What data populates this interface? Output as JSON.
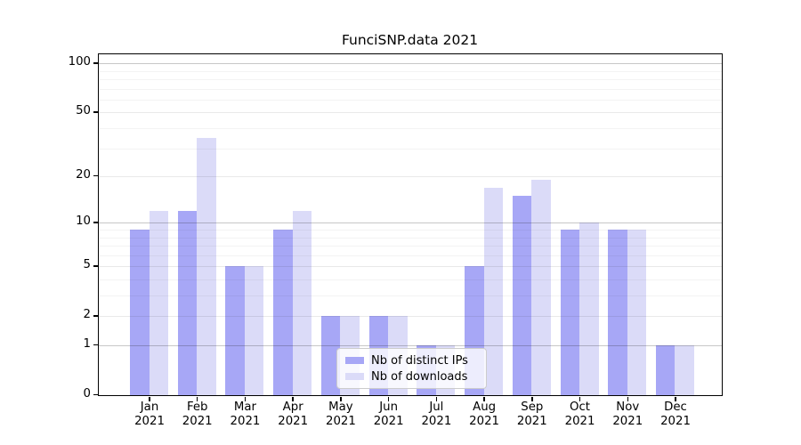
{
  "title": "FunciSNP.data 2021",
  "chart_data": {
    "type": "bar",
    "title": "FunciSNP.data 2021",
    "categories": [
      "Jan",
      "Feb",
      "Mar",
      "Apr",
      "May",
      "Jun",
      "Jul",
      "Aug",
      "Sep",
      "Oct",
      "Nov",
      "Dec"
    ],
    "year_label": "2021",
    "series": [
      {
        "name": "Nb of distinct IPs",
        "color": "#a7a7f6",
        "values": [
          9,
          12,
          5,
          9,
          2,
          2,
          1,
          5,
          15,
          9,
          9,
          1
        ]
      },
      {
        "name": "Nb of downloads",
        "color": "#dbdbf8",
        "values": [
          12,
          35,
          5,
          12,
          2,
          2,
          1,
          17,
          19,
          10,
          9,
          1
        ]
      }
    ],
    "y_ticks": [
      0,
      1,
      2,
      5,
      10,
      20,
      50,
      100
    ],
    "gridline_values": {
      "major": [
        1,
        10,
        100
      ],
      "mid": [
        2,
        5,
        20,
        50
      ],
      "minor": [
        3,
        4,
        6,
        7,
        8,
        9,
        30,
        40,
        60,
        70,
        80,
        90
      ]
    },
    "scale": "log1p",
    "ylim": [
      0,
      112
    ],
    "grid": true,
    "legend_position": "bottom-center",
    "xlabel": "",
    "ylabel": ""
  }
}
